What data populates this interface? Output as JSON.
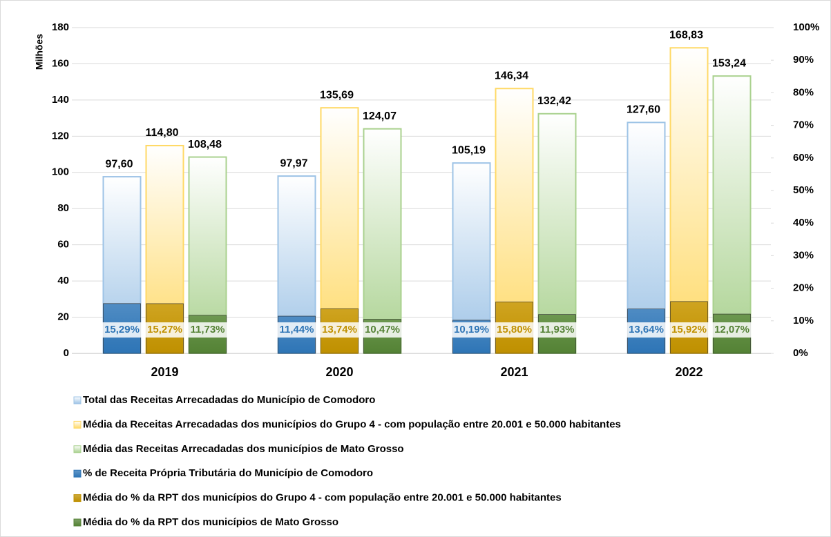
{
  "chart_data": {
    "type": "bar",
    "y_label": "Milhões",
    "categories": [
      "2019",
      "2020",
      "2021",
      "2022"
    ],
    "ylim": [
      0,
      180
    ],
    "yticks": [
      0,
      20,
      40,
      60,
      80,
      100,
      120,
      140,
      160,
      180
    ],
    "y2lim": [
      0,
      100
    ],
    "y2ticks": [
      {
        "value": 0,
        "label": "0%"
      },
      {
        "value": 10,
        "label": "10%"
      },
      {
        "value": 20,
        "label": "20%"
      },
      {
        "value": 30,
        "label": "30%"
      },
      {
        "value": 40,
        "label": "40%"
      },
      {
        "value": 50,
        "label": "50%"
      },
      {
        "value": 60,
        "label": "60%"
      },
      {
        "value": 70,
        "label": "70%"
      },
      {
        "value": 80,
        "label": "80%"
      },
      {
        "value": 90,
        "label": "90%"
      },
      {
        "value": 100,
        "label": "100%"
      }
    ],
    "grid": true,
    "series": [
      {
        "name": "Total das Receitas Arrecadadas do Município de Comodoro",
        "color": "#9dc3e6",
        "values": [
          97.6,
          97.97,
          105.19,
          127.6
        ],
        "value_labels": [
          "97,60",
          "97,97",
          "105,19",
          "127,60"
        ]
      },
      {
        "name": "Média da Receitas Arrecadadas dos municípios do Grupo 4 - com população entre 20.001 e 50.000 habitantes",
        "color": "#ffd966",
        "values": [
          114.8,
          135.69,
          146.34,
          168.83
        ],
        "value_labels": [
          "114,80",
          "135,69",
          "146,34",
          "168,83"
        ]
      },
      {
        "name": "Média das Receitas Arrecadadas dos municípios de Mato Grosso",
        "color": "#a9d18e",
        "values": [
          108.48,
          124.07,
          132.42,
          153.24
        ],
        "value_labels": [
          "108,48",
          "124,07",
          "132,42",
          "153,24"
        ]
      },
      {
        "name": "% de Receita Própria Tributária do Município de Comodoro",
        "color": "#2e75b6",
        "axis": "y2",
        "values": [
          15.29,
          11.44,
          10.19,
          13.64
        ],
        "value_labels": [
          "15,29%",
          "11,44%",
          "10,19%",
          "13,64%"
        ]
      },
      {
        "name": "Média do % da RPT dos municípios do Grupo 4 - com população entre 20.001 e 50.000 habitantes",
        "color": "#bf9000",
        "axis": "y2",
        "values": [
          15.27,
          13.74,
          15.8,
          15.92
        ],
        "value_labels": [
          "15,27%",
          "13,74%",
          "15,80%",
          "15,92%"
        ]
      },
      {
        "name": "Média do % da RPT dos municípios de Mato Grosso",
        "color": "#548235",
        "axis": "y2",
        "values": [
          11.73,
          10.47,
          11.93,
          12.07
        ],
        "value_labels": [
          "11,73%",
          "10,47%",
          "11,93%",
          "12,07%"
        ]
      }
    ]
  }
}
